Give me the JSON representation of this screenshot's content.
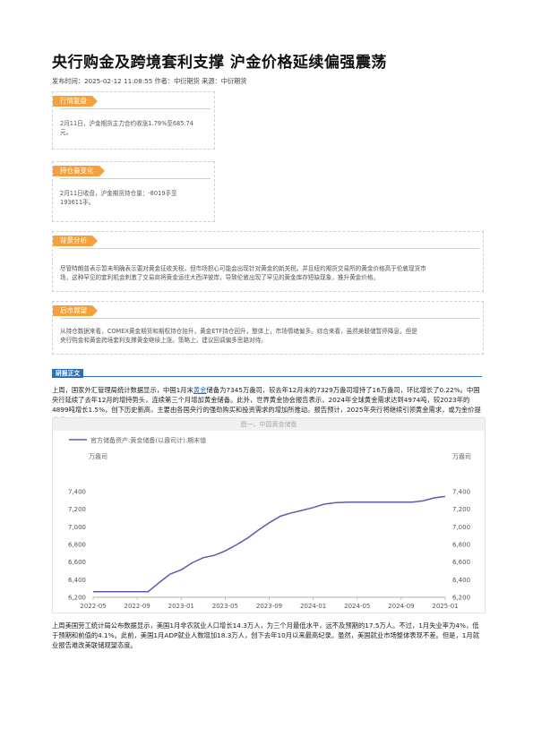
{
  "article": {
    "title": "央行购金及跨境套利支撑 沪金价格延续偏强震荡",
    "meta": "发布时间：2025-02-12 11:08:55 作者：中衍期货 来源：中衍期货"
  },
  "cards": [
    {
      "label": "行情复盘",
      "text_lines": [
        "2月11日，沪金期货主力合约收涨1.79%至685.74",
        "元。"
      ]
    },
    {
      "label": "持仓量变化",
      "text_lines": [
        "2月11日收盘，沪金期货持仓量：-8019手至",
        "193611手。"
      ]
    },
    {
      "label": "背景分析",
      "text_lines": [
        "尽管特朗普表示暂未明确表示要对黄金征收关税，但市场担心可能会出现针对黄金的新关税。并且纽约期货交易所的黄金价格高于伦敦现货市",
        "场，这种罕见的套利机会刺激了交易商将黄金运往大西洋彼岸，导致伦敦出现了罕见的黄金库存短缺现象，推升黄金价格。"
      ]
    },
    {
      "label": "后市展望",
      "text_lines": [
        "从持仓数据来看，COMEX黄金期货和期权持仓抬升，黄金ETF持仓回升，整体上，市场情绪偏多。综合来看，虽然美联储暂停降息，但是",
        "央行购金和黄金跨境套利支撑黄金继续上涨。策略上，建议回调偏多思路对待。"
      ]
    }
  ],
  "section": {
    "label": "研报正文"
  },
  "paragraph1": {
    "before": "上周，国家外汇管理局统计数据显示，中国1月末",
    "keyword": "黄金",
    "after": "储备为7345万盎司，较去年12月末的7329万盎司增持了16万盎司，环比增长了0.22%。中国央行延续了去年12月的增持势头，连续第三个月增加黄金储备。此外，世界黄金协会报告表示，2024年全球黄金需求达到4974吨，较2023年的4899吨增长1.5%，创下历史新高，主要由各国央行的强劲购买和投资需求的增加所推动。报告预计，2025年央行将继续引领黄金需求，或为金价提供重要支柱。"
  },
  "paragraph2": "上周美国劳工统计局公布数据显示，美国1月非农就业人口增长14.3万人，为三个月最低水平，远不及预期的17.5万人。不过，1月失业率为4%，低于预期和前值的4.1%。此前，美国1月ADP就业人数增加18.3万人，创下去年10月以来最高纪录。虽然，美国就业市场整体表现不差。但是，1月就业报告难改美联储观望态度。",
  "chart_data": {
    "type": "line",
    "title": "图一、中国黄金储备",
    "series": [
      {
        "name": "官方储备资产:黄金储备(以盎司计):期末值",
        "color": "#5b5bb0",
        "x": [
          "2022-05",
          "2022-06",
          "2022-07",
          "2022-08",
          "2022-09",
          "2022-10",
          "2022-11",
          "2022-12",
          "2023-01",
          "2023-02",
          "2023-03",
          "2023-04",
          "2023-05",
          "2023-06",
          "2023-07",
          "2023-08",
          "2023-09",
          "2023-10",
          "2023-11",
          "2023-12",
          "2024-01",
          "2024-02",
          "2024-03",
          "2024-04",
          "2024-05",
          "2024-06",
          "2024-07",
          "2024-08",
          "2024-09",
          "2024-10",
          "2024-11",
          "2024-12",
          "2025-01"
        ],
        "values": [
          6264,
          6264,
          6264,
          6264,
          6264,
          6264,
          6367,
          6464,
          6512,
          6592,
          6650,
          6676,
          6727,
          6795,
          6869,
          6962,
          7046,
          7120,
          7158,
          7187,
          7219,
          7258,
          7274,
          7280,
          7280,
          7280,
          7280,
          7280,
          7280,
          7280,
          7296,
          7329,
          7345
        ]
      }
    ],
    "left_unit": "万盎司",
    "right_unit": "万盎司",
    "ylim": [
      6200,
      7400
    ],
    "yticks": [
      "7,400",
      "7,200",
      "7,000",
      "6,800",
      "6,600",
      "6,400",
      "6,200"
    ],
    "xticks": [
      "2022-05",
      "2022-09",
      "2023-01",
      "2023-05",
      "2023-09",
      "2024-01",
      "2024-05",
      "2024-09",
      "2025-01"
    ],
    "grid": false,
    "legend": "top-left"
  }
}
